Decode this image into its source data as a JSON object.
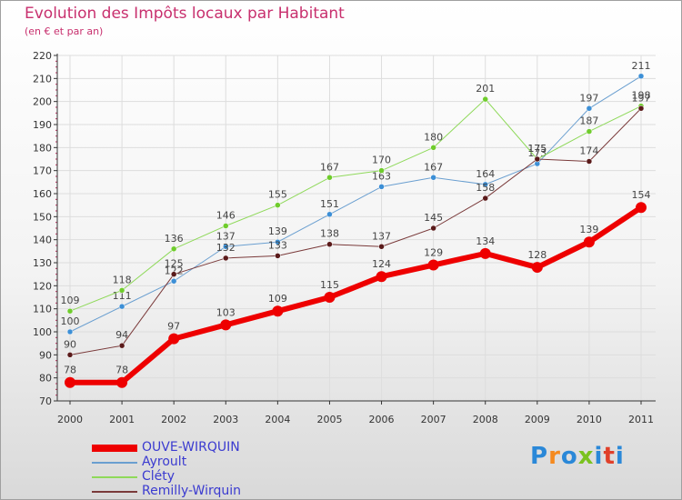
{
  "colors": {
    "title": "#c8306e",
    "legend_text": "#3b3bd0",
    "grid": "#dddddd",
    "axis": "#333333",
    "tick_text": "#333333",
    "data_label": "#444444",
    "logo": [
      "#2a88d8",
      "#f58a1f",
      "#2a88d8",
      "#7ac21f",
      "#2a88d8",
      "#e0402a",
      "#2a88d8",
      "#7ac21f"
    ]
  },
  "logo_text": "Proxiti",
  "chart_data": {
    "type": "line",
    "title": "Evolution des Impôts locaux par Habitant",
    "subtitle": "(en € et par an)",
    "xlabel": "",
    "ylabel": "",
    "categories": [
      "2000",
      "2001",
      "2002",
      "2003",
      "2004",
      "2005",
      "2006",
      "2007",
      "2008",
      "2009",
      "2010",
      "2011"
    ],
    "ylim": [
      70,
      220
    ],
    "ytick_step": 10,
    "yticks": [
      "70",
      "80",
      "90",
      "100",
      "110",
      "120",
      "130",
      "140",
      "150",
      "160",
      "170",
      "180",
      "190",
      "200",
      "210",
      "220"
    ],
    "series": [
      {
        "name": "Ayroult",
        "color": "#6a9fd0",
        "marker": "#3c8fd6",
        "width": 1,
        "values": [
          100,
          111,
          122,
          137,
          139,
          151,
          163,
          167,
          164,
          173,
          197,
          211
        ],
        "labels": [
          "100",
          "111",
          "122",
          "137",
          "139",
          "151",
          "163",
          "167",
          "164",
          "173",
          "197",
          "211"
        ]
      },
      {
        "name": "Cléty",
        "color": "#8fd95a",
        "marker": "#6fcc2c",
        "width": 1,
        "values": [
          109,
          118,
          136,
          146,
          155,
          167,
          170,
          180,
          201,
          175,
          187,
          198
        ],
        "labels": [
          "109",
          "118",
          "136",
          "146",
          "155",
          "167",
          "170",
          "180",
          "201",
          "175",
          "187",
          "198"
        ]
      },
      {
        "name": "Remilly-Wirquin",
        "color": "#7a3a3a",
        "marker": "#5a1a1a",
        "width": 1,
        "values": [
          90,
          94,
          125,
          132,
          133,
          138,
          137,
          145,
          158,
          175,
          174,
          197
        ],
        "labels": [
          "90",
          "94",
          "125",
          "132",
          "133",
          "138",
          "137",
          "145",
          "158",
          "175",
          "174",
          "197"
        ]
      },
      {
        "name": "OUVE-WIRQUIN",
        "color": "#ee0000",
        "marker": "#ee0000",
        "width": 6,
        "values": [
          78,
          78,
          97,
          103,
          109,
          115,
          124,
          129,
          134,
          128,
          139,
          154
        ],
        "labels": [
          "78",
          "78",
          "97",
          "103",
          "109",
          "115",
          "124",
          "129",
          "134",
          "128",
          "139",
          "154"
        ]
      }
    ],
    "legend_order": [
      "OUVE-WIRQUIN",
      "Ayroult",
      "Cléty",
      "Remilly-Wirquin"
    ],
    "legend_position": "bottom-left"
  }
}
